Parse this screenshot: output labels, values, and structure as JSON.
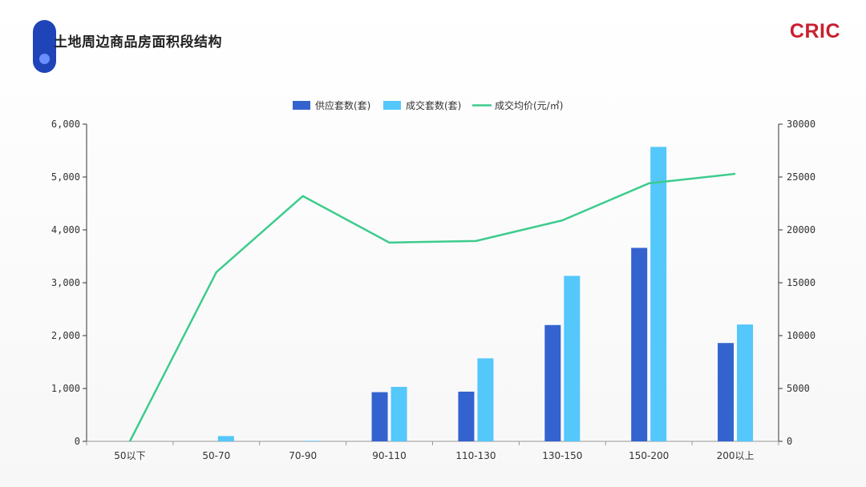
{
  "header": {
    "title": "土地周边商品房面积段结构",
    "logo_text": "CRIC"
  },
  "colors": {
    "supply": "#3463cf",
    "deal": "#54c7fb",
    "price": "#3dcc8d",
    "title_accent": "#1e44b8",
    "logo": "#c8202f"
  },
  "chart_data": {
    "type": "bar",
    "categories": [
      "50以下",
      "50-70",
      "70-90",
      "90-110",
      "110-130",
      "130-150",
      "150-200",
      "200以上"
    ],
    "series": [
      {
        "name": "供应套数(套)",
        "type": "bar",
        "axis": "left",
        "values": [
          0,
          0,
          0,
          930,
          940,
          2200,
          3660,
          1860
        ]
      },
      {
        "name": "成交套数(套)",
        "type": "bar",
        "axis": "left",
        "values": [
          0,
          100,
          10,
          1030,
          1570,
          3130,
          5570,
          2210
        ]
      },
      {
        "name": "成交均价(元/㎡)",
        "type": "line",
        "axis": "right",
        "values": [
          0,
          16000,
          23200,
          18800,
          18950,
          20900,
          24400,
          25300
        ]
      }
    ],
    "y_left": {
      "range": [
        0,
        6000
      ],
      "ticks": [
        "0",
        "1,000",
        "2,000",
        "3,000",
        "4,000",
        "5,000",
        "6,000"
      ]
    },
    "y_right": {
      "range": [
        0,
        30000
      ],
      "ticks": [
        "0",
        "5000",
        "10000",
        "15000",
        "20000",
        "25000",
        "30000"
      ]
    },
    "legend_position": "top-center",
    "grid": false
  }
}
